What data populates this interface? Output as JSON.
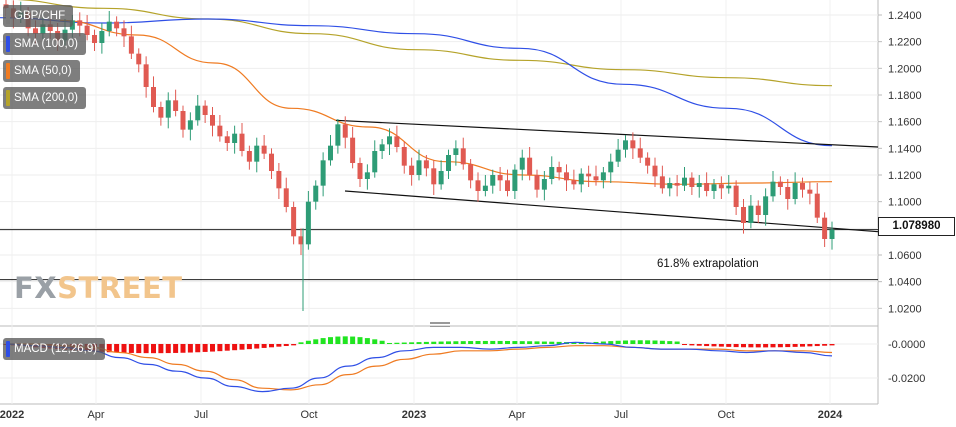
{
  "legend": {
    "symbol": "GBP/CHF",
    "sma100": "SMA (100,0)",
    "sma50": "SMA (50,0)",
    "sma200": "SMA (200,0)",
    "macd": "MACD (12,26,9)"
  },
  "colors": {
    "up": "#2e9c76",
    "down": "#e05a52",
    "sma100": "#2f4fe6",
    "sma50": "#ef7b22",
    "sma200": "#b5a32a",
    "macd_line": "#2f4fe6",
    "signal_line": "#ef7b22",
    "hist_pos": "#21e421",
    "hist_neg": "#ee1111"
  },
  "watermark": {
    "fx": "FX",
    "street": "STREET"
  },
  "annotation": {
    "extrapolation_label": "61.8% extrapolation"
  },
  "current_price": "1.078980",
  "chart_data": [
    {
      "type": "candlestick",
      "title": "GBP/CHF",
      "timeframe": "weekly",
      "ylim": [
        1.005,
        1.255
      ],
      "y_ticks": [
        "1.2400",
        "1.2200",
        "1.2000",
        "1.1800",
        "1.1600",
        "1.1400",
        "1.1200",
        "1.1000",
        "1.0800",
        "1.0600",
        "1.0400",
        "1.0200"
      ],
      "x_ticks": [
        "2022",
        "Apr",
        "Jul",
        "Oct",
        "2023",
        "Apr",
        "Jul",
        "Oct",
        "2024"
      ],
      "horizontal_levels": [
        {
          "value": 1.079,
          "label": "1.078980"
        },
        {
          "value": 1.0415,
          "label": "61.8% extrapolation"
        }
      ],
      "channel": {
        "upper": [
          [
            1.161,
            1.141
          ]
        ],
        "lower": [
          [
            1.108,
            1.078
          ]
        ]
      },
      "sma_200_approx": [
        1.252,
        1.245,
        1.237,
        1.226,
        1.214,
        1.206,
        1.199,
        1.193,
        1.187
      ],
      "sma_100_approx": [
        1.238,
        1.234,
        1.237,
        1.232,
        1.226,
        1.215,
        1.188,
        1.17,
        1.142
      ],
      "sma_50_approx": [
        1.236,
        1.225,
        1.204,
        1.17,
        1.156,
        1.13,
        1.12,
        1.115,
        1.113,
        1.114,
        1.115
      ]
    },
    {
      "type": "histogram_line",
      "title": "MACD (12,26,9)",
      "ylim": [
        -0.0295,
        0.0015
      ],
      "y_ticks": [
        "-0.0000",
        "-0.0200"
      ],
      "histogram_phase": [
        "negative",
        "negative",
        "positive",
        "positive",
        "negative",
        "negative"
      ],
      "macd_range": [
        -0.028,
        0.001
      ],
      "signal_range": [
        -0.027,
        0.0
      ]
    }
  ]
}
